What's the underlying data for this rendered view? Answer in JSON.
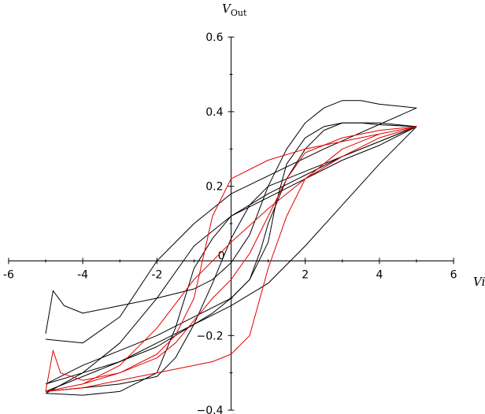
{
  "chart_data": {
    "type": "line",
    "title": "",
    "xlabel": "V_i",
    "ylabel": "V_Out",
    "ylabel_base": "V",
    "ylabel_sub": "Out",
    "xlabel_text": "Vi",
    "xlim": [
      -6,
      6
    ],
    "ylim": [
      -0.4,
      0.6
    ],
    "x_ticks": [
      -6,
      -4,
      -2,
      0,
      2,
      4,
      6
    ],
    "x_tick_labels": [
      "-6",
      "-4",
      "-2",
      "0",
      "2",
      "4",
      "6"
    ],
    "y_ticks": [
      -0.4,
      -0.2,
      0.2,
      0.4,
      0.6
    ],
    "y_tick_labels": [
      "−0.4",
      "−0.2",
      "0.2",
      "0.4",
      "0.6"
    ],
    "origin_label": "0",
    "grid": false,
    "series": [
      {
        "color": "#000000",
        "x": [
          -5,
          -4.8,
          -4.5,
          -4,
          -3,
          -2,
          -1,
          -0.5,
          0,
          0.5,
          1,
          1.5,
          2,
          2.5,
          3,
          3.5,
          4,
          4.5,
          5,
          2.5,
          0,
          -1,
          -2,
          -3,
          -4,
          -5
        ],
        "y": [
          -0.195,
          -0.08,
          -0.12,
          -0.14,
          -0.12,
          -0.1,
          -0.075,
          -0.05,
          -0.005,
          0.07,
          0.2,
          0.3,
          0.37,
          0.41,
          0.43,
          0.43,
          0.42,
          0.415,
          0.41,
          0.3,
          0.18,
          0.1,
          0.0,
          -0.15,
          -0.22,
          -0.21
        ]
      },
      {
        "color": "#000000",
        "x": [
          -5,
          -4,
          -3,
          -2,
          -1.5,
          -1,
          -0.5,
          0,
          0.5,
          0.8,
          1,
          1.5,
          2,
          2.5,
          3,
          4,
          5,
          4,
          3,
          2,
          1,
          0,
          -0.5,
          -1,
          -1.5,
          -2,
          -3,
          -4,
          -5
        ],
        "y": [
          -0.355,
          -0.3,
          -0.27,
          -0.23,
          -0.2,
          -0.17,
          -0.14,
          -0.1,
          -0.05,
          0.03,
          0.1,
          0.22,
          0.3,
          0.35,
          0.37,
          0.37,
          0.36,
          0.32,
          0.28,
          0.23,
          0.18,
          0.12,
          0.06,
          -0.02,
          -0.18,
          -0.3,
          -0.35,
          -0.36,
          -0.355
        ]
      },
      {
        "color": "#000000",
        "x": [
          -5,
          -4,
          -3,
          -2,
          -1,
          0,
          1,
          2,
          3,
          4,
          5,
          4,
          3,
          2,
          1,
          0.5,
          0,
          -0.5,
          -1,
          -1.5,
          -2,
          -3,
          -4,
          -5
        ],
        "y": [
          -0.35,
          -0.31,
          -0.27,
          -0.22,
          -0.17,
          -0.12,
          -0.06,
          0.04,
          0.15,
          0.26,
          0.36,
          0.32,
          0.28,
          0.24,
          0.2,
          0.15,
          0.06,
          -0.06,
          -0.17,
          -0.26,
          -0.31,
          -0.33,
          -0.34,
          -0.35
        ]
      },
      {
        "color": "#000000",
        "x": [
          -5,
          -4,
          -3,
          -2,
          -1,
          0,
          0.5,
          1,
          1.2,
          1.5,
          2,
          2.5,
          3,
          3.5,
          4,
          5,
          4,
          3,
          2,
          1,
          0,
          -1,
          -2,
          -3,
          -4,
          -5
        ],
        "y": [
          -0.33,
          -0.28,
          -0.24,
          -0.2,
          -0.15,
          -0.1,
          -0.05,
          0.05,
          0.15,
          0.26,
          0.33,
          0.36,
          0.37,
          0.37,
          0.365,
          0.36,
          0.31,
          0.27,
          0.22,
          0.17,
          0.12,
          0.04,
          -0.1,
          -0.22,
          -0.3,
          -0.33
        ]
      },
      {
        "color": "#e00000",
        "x": [
          -5,
          -4.8,
          -4.6,
          -4,
          -3,
          -2,
          -1.5,
          -1,
          -0.5,
          0,
          1,
          2,
          3,
          4,
          5,
          4,
          3,
          2,
          1.5,
          1,
          0.5,
          0,
          -0.5,
          -1,
          -2,
          -3,
          -4,
          -5
        ],
        "y": [
          -0.35,
          -0.24,
          -0.3,
          -0.32,
          -0.3,
          -0.25,
          -0.2,
          -0.1,
          0.12,
          0.22,
          0.27,
          0.3,
          0.32,
          0.34,
          0.36,
          0.34,
          0.3,
          0.22,
          0.12,
          -0.02,
          -0.2,
          -0.25,
          -0.27,
          -0.28,
          -0.3,
          -0.32,
          -0.34,
          -0.35
        ]
      },
      {
        "color": "#e00000",
        "x": [
          -5,
          -4,
          -3,
          -2,
          -1.5,
          -1,
          -0.5,
          0,
          0.5,
          1,
          1.5,
          2,
          3,
          4,
          5,
          4,
          3,
          2,
          1,
          0,
          -1,
          -2,
          -3,
          -4,
          -5
        ],
        "y": [
          -0.35,
          -0.33,
          -0.3,
          -0.26,
          -0.22,
          -0.16,
          -0.1,
          -0.05,
          0.02,
          0.12,
          0.22,
          0.29,
          0.33,
          0.35,
          0.36,
          0.33,
          0.28,
          0.22,
          0.14,
          0.05,
          -0.05,
          -0.18,
          -0.28,
          -0.33,
          -0.35
        ]
      }
    ]
  }
}
